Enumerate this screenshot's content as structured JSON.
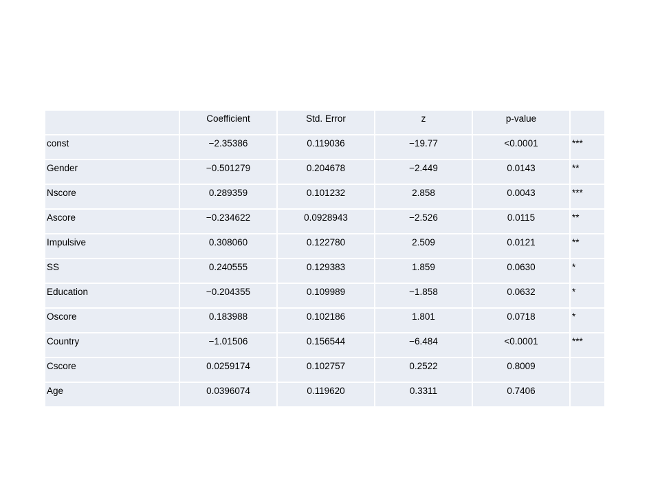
{
  "table": {
    "headers": [
      "",
      "Coefficient",
      "Std. Error",
      "z",
      "p-value",
      ""
    ],
    "rows": [
      {
        "variable": "const",
        "coefficient": "−2.35386",
        "std_error": "0.119036",
        "z": "−19.77",
        "p_value": "<0.0001",
        "significance": "***"
      },
      {
        "variable": "Gender",
        "coefficient": "−0.501279",
        "std_error": "0.204678",
        "z": "−2.449",
        "p_value": "0.0143",
        "significance": "**"
      },
      {
        "variable": "Nscore",
        "coefficient": "0.289359",
        "std_error": "0.101232",
        "z": "2.858",
        "p_value": "0.0043",
        "significance": "***"
      },
      {
        "variable": "Ascore",
        "coefficient": "−0.234622",
        "std_error": "0.0928943",
        "z": "−2.526",
        "p_value": "0.0115",
        "significance": "**"
      },
      {
        "variable": "Impulsive",
        "coefficient": "0.308060",
        "std_error": "0.122780",
        "z": "2.509",
        "p_value": "0.0121",
        "significance": "**"
      },
      {
        "variable": "SS",
        "coefficient": "0.240555",
        "std_error": "0.129383",
        "z": "1.859",
        "p_value": "0.0630",
        "significance": "*"
      },
      {
        "variable": "Education",
        "coefficient": "−0.204355",
        "std_error": "0.109989",
        "z": "−1.858",
        "p_value": "0.0632",
        "significance": "*"
      },
      {
        "variable": "Oscore",
        "coefficient": "0.183988",
        "std_error": "0.102186",
        "z": "1.801",
        "p_value": "0.0718",
        "significance": "*"
      },
      {
        "variable": "Country",
        "coefficient": "−1.01506",
        "std_error": "0.156544",
        "z": "−6.484",
        "p_value": "<0.0001",
        "significance": "***"
      },
      {
        "variable": "Cscore",
        "coefficient": "0.0259174",
        "std_error": "0.102757",
        "z": "0.2522",
        "p_value": "0.8009",
        "significance": ""
      },
      {
        "variable": "Age",
        "coefficient": "0.0396074",
        "std_error": "0.119620",
        "z": "0.3311",
        "p_value": "0.7406",
        "significance": ""
      }
    ]
  },
  "colors": {
    "cell_background": "#e9edf4",
    "cell_border": "#ffffff",
    "page_background": "#ffffff"
  }
}
